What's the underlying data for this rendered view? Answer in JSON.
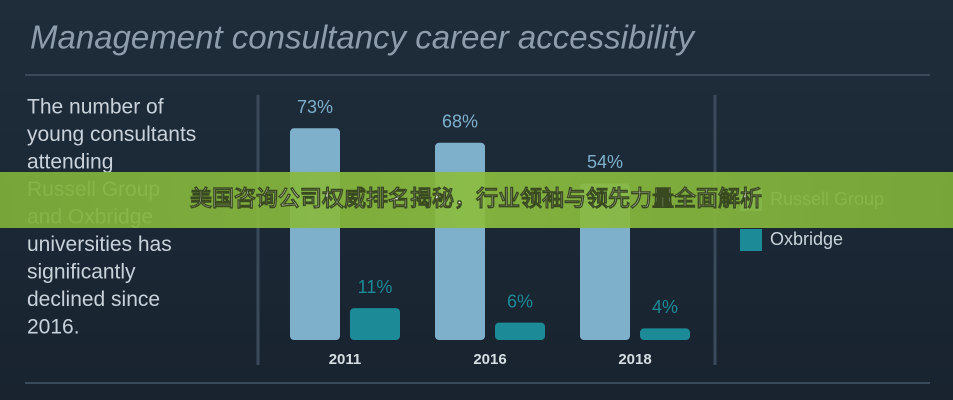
{
  "chart_data": {
    "type": "bar",
    "title": "Management consultancy career accessibility",
    "description": [
      "The number of",
      "young consultants",
      "attending",
      "Russell Group",
      "and Oxbridge",
      "universities has",
      "significantly",
      "declined since",
      "2016."
    ],
    "categories": [
      "2011",
      "2016",
      "2018"
    ],
    "series": [
      {
        "name": "Russell Group",
        "color": "#7eb0cc",
        "values": [
          73,
          68,
          54
        ],
        "value_labels": [
          "73%",
          "68%",
          "54%"
        ]
      },
      {
        "name": "Oxbridge",
        "color": "#1c8a97",
        "values": [
          11,
          6,
          4
        ],
        "value_labels": [
          "11%",
          "6%",
          "4%"
        ]
      }
    ]
  },
  "banner": "美国咨询公司权威排名揭秘，行业领袖与领先力量全面解析"
}
